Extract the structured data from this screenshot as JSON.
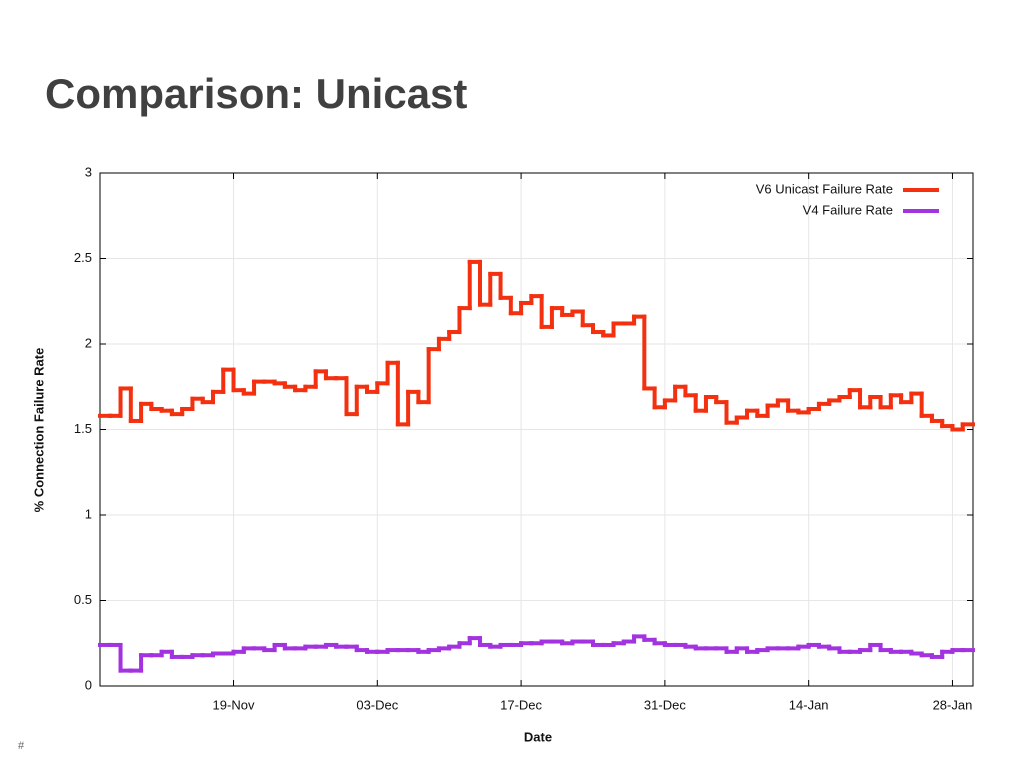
{
  "slide_title": "Comparison: Unicast",
  "slide_number": "#",
  "chart_data": {
    "type": "step",
    "xlabel": "Date",
    "ylabel": "% Connection Failure Rate",
    "categories": [
      "06-Nov",
      "07-Nov",
      "08-Nov",
      "09-Nov",
      "10-Nov",
      "11-Nov",
      "12-Nov",
      "13-Nov",
      "14-Nov",
      "15-Nov",
      "16-Nov",
      "17-Nov",
      "18-Nov",
      "19-Nov",
      "20-Nov",
      "21-Nov",
      "22-Nov",
      "23-Nov",
      "24-Nov",
      "25-Nov",
      "26-Nov",
      "27-Nov",
      "28-Nov",
      "29-Nov",
      "30-Nov",
      "01-Dec",
      "02-Dec",
      "03-Dec",
      "04-Dec",
      "05-Dec",
      "06-Dec",
      "07-Dec",
      "08-Dec",
      "09-Dec",
      "10-Dec",
      "11-Dec",
      "12-Dec",
      "13-Dec",
      "14-Dec",
      "15-Dec",
      "16-Dec",
      "17-Dec",
      "18-Dec",
      "19-Dec",
      "20-Dec",
      "21-Dec",
      "22-Dec",
      "23-Dec",
      "24-Dec",
      "25-Dec",
      "26-Dec",
      "27-Dec",
      "28-Dec",
      "29-Dec",
      "30-Dec",
      "31-Dec",
      "01-Jan",
      "02-Jan",
      "03-Jan",
      "04-Jan",
      "05-Jan",
      "06-Jan",
      "07-Jan",
      "08-Jan",
      "09-Jan",
      "10-Jan",
      "11-Jan",
      "12-Jan",
      "13-Jan",
      "14-Jan",
      "15-Jan",
      "16-Jan",
      "17-Jan",
      "18-Jan",
      "19-Jan",
      "20-Jan",
      "21-Jan",
      "22-Jan",
      "23-Jan",
      "24-Jan",
      "25-Jan",
      "26-Jan",
      "27-Jan",
      "28-Jan",
      "29-Jan"
    ],
    "xticks": [
      "19-Nov",
      "03-Dec",
      "17-Dec",
      "31-Dec",
      "14-Jan",
      "28-Jan"
    ],
    "series": [
      {
        "name": "V6 Unicast Failure Rate",
        "color": "#f3300f",
        "values": [
          1.58,
          1.58,
          1.74,
          1.55,
          1.65,
          1.62,
          1.61,
          1.59,
          1.62,
          1.68,
          1.66,
          1.72,
          1.85,
          1.73,
          1.71,
          1.78,
          1.78,
          1.77,
          1.75,
          1.73,
          1.75,
          1.84,
          1.8,
          1.8,
          1.59,
          1.75,
          1.72,
          1.77,
          1.89,
          1.53,
          1.72,
          1.66,
          1.97,
          2.03,
          2.07,
          2.21,
          2.48,
          2.23,
          2.41,
          2.27,
          2.18,
          2.24,
          2.28,
          2.1,
          2.21,
          2.17,
          2.19,
          2.11,
          2.07,
          2.05,
          2.12,
          2.12,
          2.16,
          1.74,
          1.63,
          1.67,
          1.75,
          1.7,
          1.61,
          1.69,
          1.66,
          1.54,
          1.57,
          1.61,
          1.58,
          1.64,
          1.67,
          1.61,
          1.6,
          1.62,
          1.65,
          1.67,
          1.69,
          1.73,
          1.63,
          1.69,
          1.63,
          1.7,
          1.66,
          1.71,
          1.58,
          1.55,
          1.52,
          1.5,
          1.53
        ]
      },
      {
        "name": "V4 Failure Rate",
        "color": "#a332e0",
        "values": [
          0.24,
          0.24,
          0.09,
          0.09,
          0.18,
          0.18,
          0.2,
          0.17,
          0.17,
          0.18,
          0.18,
          0.19,
          0.19,
          0.2,
          0.22,
          0.22,
          0.21,
          0.24,
          0.22,
          0.22,
          0.23,
          0.23,
          0.24,
          0.23,
          0.23,
          0.21,
          0.2,
          0.2,
          0.21,
          0.21,
          0.21,
          0.2,
          0.21,
          0.22,
          0.23,
          0.25,
          0.28,
          0.24,
          0.23,
          0.24,
          0.24,
          0.25,
          0.25,
          0.26,
          0.26,
          0.25,
          0.26,
          0.26,
          0.24,
          0.24,
          0.25,
          0.26,
          0.29,
          0.27,
          0.25,
          0.24,
          0.24,
          0.23,
          0.22,
          0.22,
          0.22,
          0.2,
          0.22,
          0.2,
          0.21,
          0.22,
          0.22,
          0.22,
          0.23,
          0.24,
          0.23,
          0.22,
          0.2,
          0.2,
          0.21,
          0.24,
          0.21,
          0.2,
          0.2,
          0.19,
          0.18,
          0.17,
          0.2,
          0.21,
          0.21
        ]
      }
    ],
    "ylim": [
      0,
      3
    ],
    "yticks": [
      0,
      0.5,
      1,
      1.5,
      2,
      2.5,
      3
    ],
    "grid": true,
    "legend": "upper-right"
  }
}
